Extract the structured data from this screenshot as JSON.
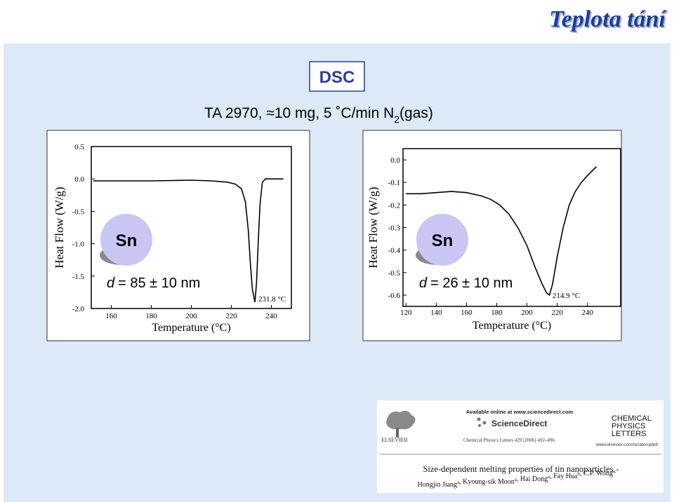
{
  "slide": {
    "title": "Teplota tání",
    "box_label": "DSC",
    "subtitle": {
      "main": "TA 2970, ≈10 mg, 5 ˚C/min N",
      "sub": "2",
      "tail": "(gas)"
    }
  },
  "chart_data": [
    {
      "type": "line",
      "y_label": "Heat Flow (W/g)",
      "x_label": "Temperature (°C)",
      "annotation": "231.8 °C",
      "particle": "Sn",
      "size_var": "d",
      "size_text": "= 85 ± 10 nm",
      "color": "#000000",
      "x": [
        151,
        160,
        180,
        200,
        210,
        218,
        222,
        225,
        227,
        228.5,
        229.5,
        230.5,
        231.8,
        232.6,
        233.4,
        234.3,
        235.5,
        237,
        240,
        246
      ],
      "values": [
        -0.03,
        -0.03,
        -0.03,
        -0.02,
        -0.03,
        -0.05,
        -0.08,
        -0.15,
        -0.35,
        -0.8,
        -1.3,
        -1.7,
        -1.9,
        -1.6,
        -1.0,
        -0.4,
        -0.05,
        0,
        0,
        0
      ],
      "xlim": [
        150,
        250
      ],
      "xticks": [
        160,
        180,
        200,
        220,
        240
      ],
      "ylim": [
        -2.0,
        0.5
      ],
      "yticks": [
        {
          "value": -2,
          "label": "-2.0"
        },
        -1.5,
        {
          "value": -1,
          "label": "-1.0"
        },
        -0.5,
        {
          "value": 0,
          "label": "0.0"
        },
        0.5
      ]
    },
    {
      "type": "line",
      "y_label": "Heat Flow (W/g)",
      "x_label": "Temperature (°C)",
      "annotation": "214.9 °C",
      "particle": "Sn",
      "size_var": "d",
      "size_text": "= 26 ± 10 nm",
      "color": "#000000",
      "x": [
        120,
        130,
        140,
        150,
        160,
        170,
        176,
        182,
        188,
        194,
        200,
        205,
        210,
        213,
        214.9,
        217,
        220,
        224,
        228,
        232,
        236,
        240,
        243,
        246
      ],
      "values": [
        -0.15,
        -0.15,
        -0.145,
        -0.14,
        -0.145,
        -0.16,
        -0.175,
        -0.2,
        -0.24,
        -0.3,
        -0.38,
        -0.47,
        -0.55,
        -0.59,
        -0.6,
        -0.55,
        -0.43,
        -0.3,
        -0.2,
        -0.14,
        -0.1,
        -0.07,
        -0.05,
        -0.03
      ],
      "xlim": [
        118,
        262
      ],
      "xticks": [
        120,
        140,
        160,
        180,
        200,
        220,
        240
      ],
      "ylim": [
        -0.65,
        0.05
      ],
      "yticks": [
        -0.6,
        -0.5,
        -0.4,
        -0.3,
        -0.2,
        -0.1,
        {
          "value": 0,
          "label": "0.0"
        }
      ]
    }
  ],
  "paper": {
    "online": "Available online at www.sciencedirect.com",
    "brand": "ScienceDirect",
    "journal_ref": "Chemical Physics Letters 429 (2006) 492–496",
    "publisher": "ELSEVIER",
    "journal": [
      "CHEMICAL",
      "PHYSICS",
      "LETTERS"
    ],
    "url": "www.elsevier.com/locate/cplett",
    "title": "Size-dependent melting properties of tin nanoparticles",
    "authors": [
      {
        "name": "Hongjin Jiang",
        "sup": "a"
      },
      {
        "name": ", Kyoung-sik Moon",
        "sup": "a"
      },
      {
        "name": ", Hai Dong",
        "sup": "a"
      },
      {
        "name": ", Fay Hua",
        "sup": "b"
      },
      {
        "name": ", C.P. Wong",
        "sup": "a,*"
      }
    ]
  }
}
